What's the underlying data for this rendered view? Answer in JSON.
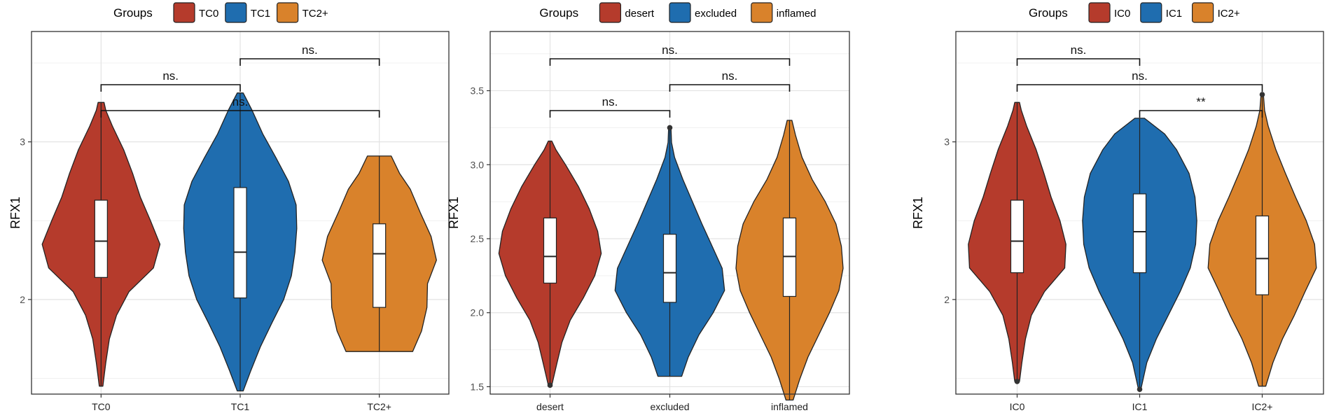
{
  "chart_data": [
    {
      "type": "violin",
      "ylabel": "RFX1",
      "ylim": [
        1.4,
        3.7
      ],
      "yticks": [
        2,
        3
      ],
      "ytick_labels": [
        "2",
        "3"
      ],
      "legend": {
        "title": "Groups",
        "position": "top",
        "entries": [
          "TC0",
          "TC1",
          "TC2+"
        ]
      },
      "categories": [
        "TC0",
        "TC1",
        "TC2+"
      ],
      "groups": [
        {
          "name": "TC0",
          "color": "#B53B2C",
          "min": 1.45,
          "max": 3.25,
          "q1": 2.14,
          "median": 2.37,
          "q3": 2.63,
          "density": [
            [
              1.45,
              0.03
            ],
            [
              1.6,
              0.08
            ],
            [
              1.75,
              0.14
            ],
            [
              1.9,
              0.26
            ],
            [
              2.05,
              0.47
            ],
            [
              2.2,
              0.88
            ],
            [
              2.35,
              0.99
            ],
            [
              2.5,
              0.83
            ],
            [
              2.65,
              0.66
            ],
            [
              2.8,
              0.53
            ],
            [
              2.95,
              0.38
            ],
            [
              3.1,
              0.19
            ],
            [
              3.2,
              0.08
            ],
            [
              3.25,
              0.05
            ]
          ],
          "outliers": []
        },
        {
          "name": "TC1",
          "color": "#1F6DAF",
          "min": 1.42,
          "max": 3.31,
          "q1": 2.01,
          "median": 2.3,
          "q3": 2.71,
          "density": [
            [
              1.42,
              0.05
            ],
            [
              1.55,
              0.18
            ],
            [
              1.7,
              0.34
            ],
            [
              1.85,
              0.53
            ],
            [
              2.0,
              0.73
            ],
            [
              2.15,
              0.86
            ],
            [
              2.3,
              0.92
            ],
            [
              2.45,
              0.95
            ],
            [
              2.6,
              0.94
            ],
            [
              2.75,
              0.81
            ],
            [
              2.9,
              0.6
            ],
            [
              3.05,
              0.38
            ],
            [
              3.2,
              0.2
            ],
            [
              3.31,
              0.05
            ]
          ],
          "outliers": []
        },
        {
          "name": "TC2+",
          "color": "#D9822B",
          "min": 1.67,
          "max": 2.91,
          "q1": 1.95,
          "median": 2.29,
          "q3": 2.48,
          "density": [
            [
              1.67,
              0.56
            ],
            [
              1.8,
              0.71
            ],
            [
              1.95,
              0.8
            ],
            [
              2.1,
              0.81
            ],
            [
              2.25,
              0.96
            ],
            [
              2.4,
              0.87
            ],
            [
              2.55,
              0.69
            ],
            [
              2.7,
              0.52
            ],
            [
              2.8,
              0.34
            ],
            [
              2.91,
              0.2
            ]
          ],
          "outliers": []
        }
      ],
      "comparisons": [
        {
          "from": "TC0",
          "to": "TC2+",
          "label": "ns."
        },
        {
          "from": "TC0",
          "to": "TC1",
          "label": "ns."
        },
        {
          "from": "TC1",
          "to": "TC2+",
          "label": "ns."
        }
      ]
    },
    {
      "type": "violin",
      "ylabel": "RFX1",
      "ylim": [
        1.45,
        3.9
      ],
      "yticks": [
        1.5,
        2.0,
        2.5,
        3.0,
        3.5
      ],
      "ytick_labels": [
        "1.5",
        "2.0",
        "2.5",
        "3.0",
        "3.5"
      ],
      "legend": {
        "title": "Groups",
        "position": "top",
        "entries": [
          "desert",
          "excluded",
          "inflamed"
        ]
      },
      "categories": [
        "desert",
        "excluded",
        "inflamed"
      ],
      "groups": [
        {
          "name": "desert",
          "color": "#B53B2C",
          "min": 1.51,
          "max": 3.16,
          "q1": 2.2,
          "median": 2.38,
          "q3": 2.64,
          "density": [
            [
              1.51,
              0.03
            ],
            [
              1.65,
              0.11
            ],
            [
              1.8,
              0.2
            ],
            [
              1.95,
              0.34
            ],
            [
              2.1,
              0.56
            ],
            [
              2.25,
              0.75
            ],
            [
              2.4,
              0.86
            ],
            [
              2.55,
              0.8
            ],
            [
              2.7,
              0.66
            ],
            [
              2.85,
              0.48
            ],
            [
              3.0,
              0.26
            ],
            [
              3.1,
              0.1
            ],
            [
              3.16,
              0.03
            ]
          ],
          "outliers": [
            1.51
          ]
        },
        {
          "name": "excluded",
          "color": "#1F6DAF",
          "min": 1.57,
          "max": 3.25,
          "q1": 2.07,
          "median": 2.27,
          "q3": 2.53,
          "density": [
            [
              1.57,
              0.2
            ],
            [
              1.7,
              0.31
            ],
            [
              1.85,
              0.49
            ],
            [
              2.0,
              0.73
            ],
            [
              2.15,
              0.92
            ],
            [
              2.3,
              0.88
            ],
            [
              2.45,
              0.71
            ],
            [
              2.6,
              0.54
            ],
            [
              2.75,
              0.38
            ],
            [
              2.9,
              0.22
            ],
            [
              3.05,
              0.08
            ],
            [
              3.15,
              0.03
            ],
            [
              3.25,
              0.02
            ]
          ],
          "outliers": [
            3.25
          ]
        },
        {
          "name": "inflamed",
          "color": "#D9822B",
          "min": 1.41,
          "max": 3.3,
          "q1": 2.11,
          "median": 2.38,
          "q3": 2.64,
          "density": [
            [
              1.41,
              0.06
            ],
            [
              1.55,
              0.17
            ],
            [
              1.7,
              0.31
            ],
            [
              1.85,
              0.49
            ],
            [
              2.0,
              0.67
            ],
            [
              2.15,
              0.83
            ],
            [
              2.3,
              0.9
            ],
            [
              2.45,
              0.87
            ],
            [
              2.6,
              0.78
            ],
            [
              2.75,
              0.6
            ],
            [
              2.9,
              0.38
            ],
            [
              3.05,
              0.21
            ],
            [
              3.2,
              0.1
            ],
            [
              3.3,
              0.04
            ]
          ],
          "outliers": []
        }
      ],
      "comparisons": [
        {
          "from": "desert",
          "to": "excluded",
          "label": "ns."
        },
        {
          "from": "excluded",
          "to": "inflamed",
          "label": "ns."
        },
        {
          "from": "desert",
          "to": "inflamed",
          "label": "ns."
        }
      ]
    },
    {
      "type": "violin",
      "ylabel": "RFX1",
      "ylim": [
        1.4,
        3.7
      ],
      "yticks": [
        2,
        3
      ],
      "ytick_labels": [
        "2",
        "3"
      ],
      "legend": {
        "title": "Groups",
        "position": "top",
        "entries": [
          "IC0",
          "IC1",
          "IC2+"
        ]
      },
      "categories": [
        "IC0",
        "IC1",
        "IC2+"
      ],
      "groups": [
        {
          "name": "IC0",
          "color": "#B53B2C",
          "min": 1.48,
          "max": 3.25,
          "q1": 2.17,
          "median": 2.37,
          "q3": 2.63,
          "density": [
            [
              1.48,
              0.04
            ],
            [
              1.6,
              0.08
            ],
            [
              1.75,
              0.14
            ],
            [
              1.9,
              0.24
            ],
            [
              2.05,
              0.46
            ],
            [
              2.2,
              0.8
            ],
            [
              2.35,
              0.82
            ],
            [
              2.5,
              0.72
            ],
            [
              2.65,
              0.57
            ],
            [
              2.8,
              0.45
            ],
            [
              2.95,
              0.32
            ],
            [
              3.1,
              0.16
            ],
            [
              3.2,
              0.07
            ],
            [
              3.25,
              0.04
            ]
          ],
          "outliers": [
            1.48
          ]
        },
        {
          "name": "IC1",
          "color": "#1F6DAF",
          "min": 1.43,
          "max": 3.15,
          "q1": 2.17,
          "median": 2.43,
          "q3": 2.67,
          "density": [
            [
              1.43,
              0.02
            ],
            [
              1.6,
              0.12
            ],
            [
              1.75,
              0.28
            ],
            [
              1.9,
              0.48
            ],
            [
              2.05,
              0.68
            ],
            [
              2.2,
              0.85
            ],
            [
              2.35,
              0.94
            ],
            [
              2.5,
              0.96
            ],
            [
              2.65,
              0.93
            ],
            [
              2.8,
              0.83
            ],
            [
              2.95,
              0.62
            ],
            [
              3.05,
              0.42
            ],
            [
              3.15,
              0.08
            ]
          ],
          "outliers": [
            1.43
          ]
        },
        {
          "name": "IC2+",
          "color": "#D9822B",
          "min": 1.45,
          "max": 3.3,
          "q1": 2.03,
          "median": 2.26,
          "q3": 2.53,
          "density": [
            [
              1.45,
              0.06
            ],
            [
              1.6,
              0.18
            ],
            [
              1.75,
              0.34
            ],
            [
              1.9,
              0.54
            ],
            [
              2.05,
              0.72
            ],
            [
              2.2,
              0.91
            ],
            [
              2.35,
              0.88
            ],
            [
              2.5,
              0.74
            ],
            [
              2.65,
              0.56
            ],
            [
              2.8,
              0.39
            ],
            [
              2.95,
              0.23
            ],
            [
              3.1,
              0.1
            ],
            [
              3.2,
              0.04
            ],
            [
              3.3,
              0.02
            ]
          ],
          "outliers": [
            3.3
          ]
        }
      ],
      "comparisons": [
        {
          "from": "IC1",
          "to": "IC2+",
          "label": "**"
        },
        {
          "from": "IC0",
          "to": "IC2+",
          "label": "ns."
        },
        {
          "from": "IC0",
          "to": "IC1",
          "label": "ns."
        }
      ]
    }
  ]
}
